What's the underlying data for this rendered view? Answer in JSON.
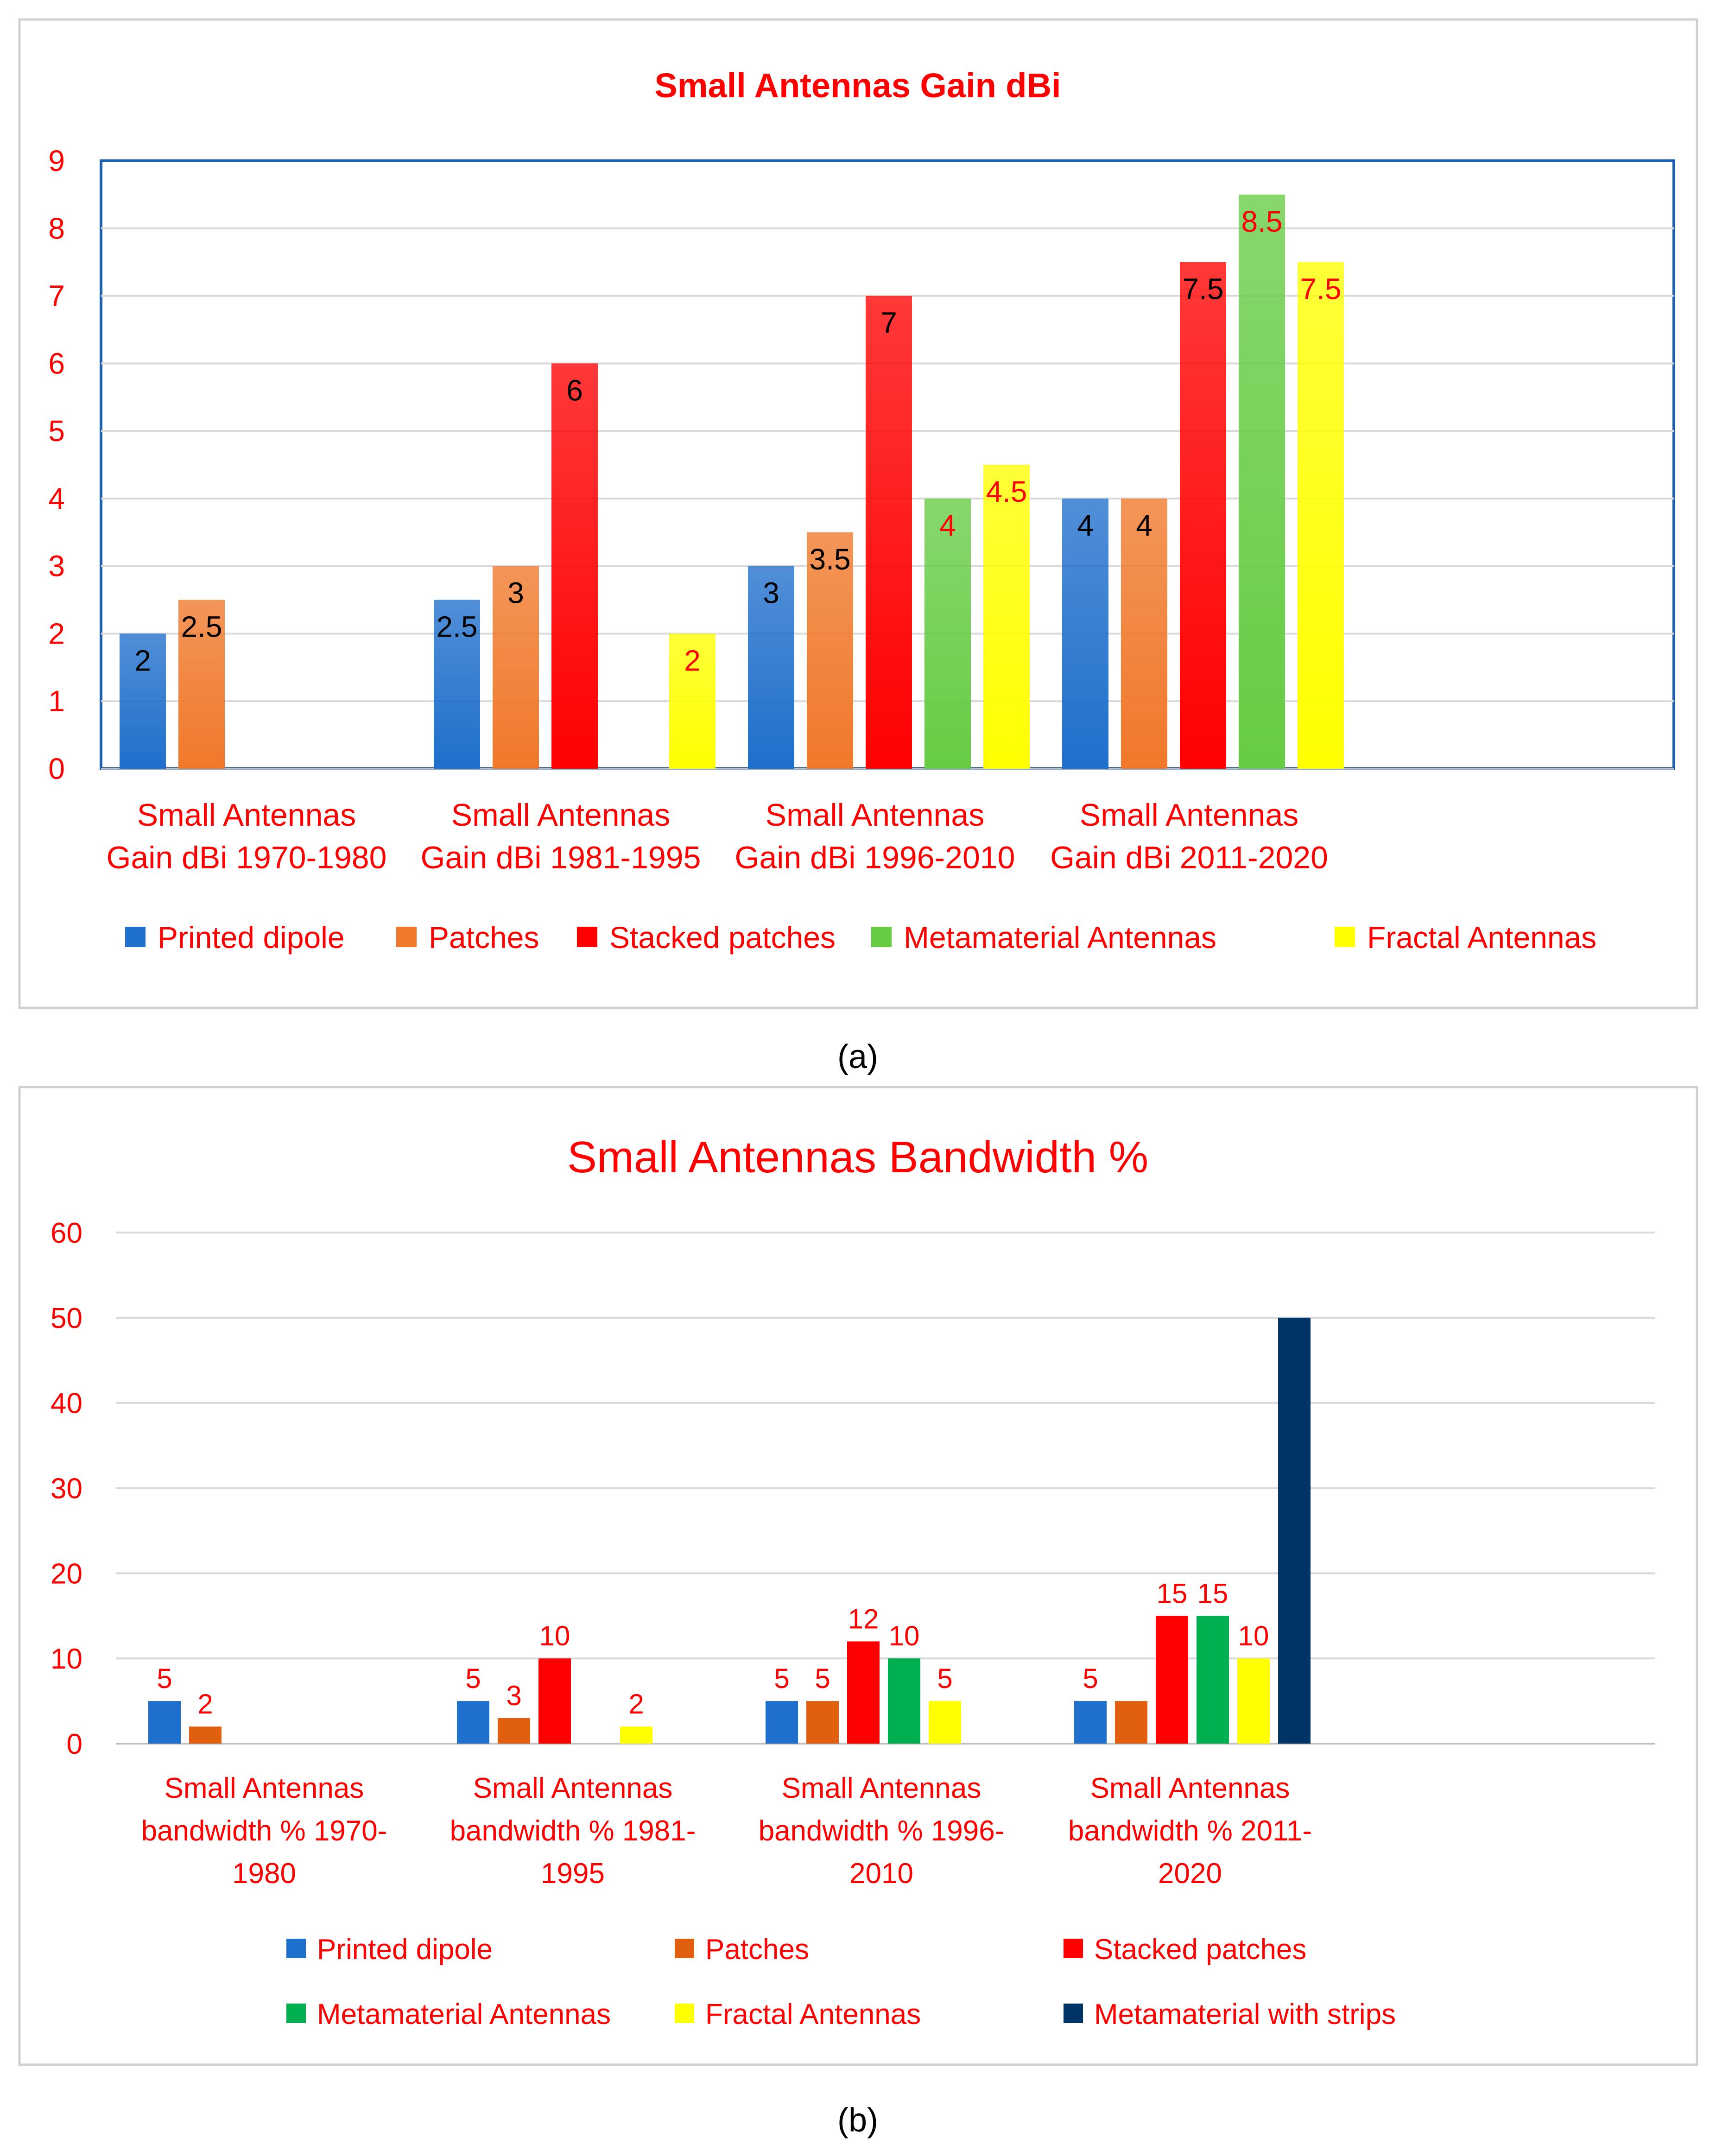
{
  "chart_data": [
    {
      "type": "bar",
      "title": "Small Antennas Gain dBi",
      "caption": "(a)",
      "categories": [
        [
          "Small Antennas",
          "Gain dBi 1970-1980"
        ],
        [
          "Small Antennas",
          "Gain dBi 1981-1995"
        ],
        [
          "Small Antennas",
          "Gain dBi 1996-2010"
        ],
        [
          "Small Antennas",
          "Gain dBi 2011-2020"
        ]
      ],
      "yticks": [
        "0",
        "1",
        "2",
        "3",
        "4",
        "5",
        "6",
        "7",
        "8",
        "9"
      ],
      "ylim": [
        0,
        9
      ],
      "grid": true,
      "legend_position": "bottom",
      "series": [
        {
          "name": "Printed dipole",
          "color": "#1f6fcc",
          "values": [
            2,
            2.5,
            3,
            4
          ],
          "label_color": "#000000"
        },
        {
          "name": "Patches",
          "color": "#f0782a",
          "values": [
            2.5,
            3,
            3.5,
            4
          ],
          "label_color": "#000000"
        },
        {
          "name": "Stacked patches",
          "color": "#ff0000",
          "values": [
            null,
            6,
            7,
            7.5
          ],
          "label_color": "#000000"
        },
        {
          "name": "Metamaterial Antennas",
          "color": "#66cc44",
          "values": [
            null,
            null,
            4,
            8.5
          ],
          "label_color": "#ff0000"
        },
        {
          "name": "Fractal Antennas",
          "color": "#ffff00",
          "values": [
            null,
            2,
            4.5,
            7.5
          ],
          "label_color": "#ff0000"
        }
      ],
      "value_labels": [
        [
          "2",
          "2.5",
          "",
          "",
          ""
        ],
        [
          "2.5",
          "3",
          "6",
          "",
          "2"
        ],
        [
          "3",
          "3.5",
          "7",
          "4",
          "4.5"
        ],
        [
          "4",
          "4",
          "7.5",
          "8.5",
          "7.5"
        ]
      ],
      "text_color": "#ff0000"
    },
    {
      "type": "bar",
      "title": "Small Antennas Bandwidth %",
      "caption": "(b)",
      "categories": [
        [
          "Small Antennas",
          "bandwidth % 1970-",
          "1980"
        ],
        [
          "Small Antennas",
          "bandwidth % 1981-",
          "1995"
        ],
        [
          "Small Antennas",
          "bandwidth % 1996-",
          "2010"
        ],
        [
          "Small Antennas",
          "bandwidth % 2011-",
          "2020"
        ]
      ],
      "yticks": [
        "0",
        "10",
        "20",
        "30",
        "40",
        "50",
        "60"
      ],
      "ylim": [
        0,
        60
      ],
      "grid": true,
      "legend_position": "bottom",
      "series": [
        {
          "name": "Printed dipole",
          "color": "#1f6fcc",
          "values": [
            5,
            5,
            5,
            5
          ]
        },
        {
          "name": "Patches",
          "color": "#e06010",
          "values": [
            2,
            3,
            5,
            5
          ]
        },
        {
          "name": "Stacked patches",
          "color": "#ff0000",
          "values": [
            null,
            10,
            12,
            15
          ]
        },
        {
          "name": "Metamaterial Antennas",
          "color": "#00b050",
          "values": [
            null,
            null,
            10,
            15
          ]
        },
        {
          "name": "Fractal Antennas",
          "color": "#ffff00",
          "values": [
            null,
            2,
            5,
            10
          ]
        },
        {
          "name": "Metamaterial with strips",
          "color": "#003366",
          "values": [
            null,
            null,
            null,
            50
          ]
        }
      ],
      "value_labels": [
        [
          "5",
          "2",
          "",
          "",
          "",
          ""
        ],
        [
          "5",
          "3",
          "10",
          "",
          "2",
          ""
        ],
        [
          "5",
          "5",
          "12",
          "10",
          "5",
          ""
        ],
        [
          "5",
          "",
          "15",
          "15",
          "10",
          ""
        ]
      ],
      "text_color": "#ff0000"
    }
  ]
}
